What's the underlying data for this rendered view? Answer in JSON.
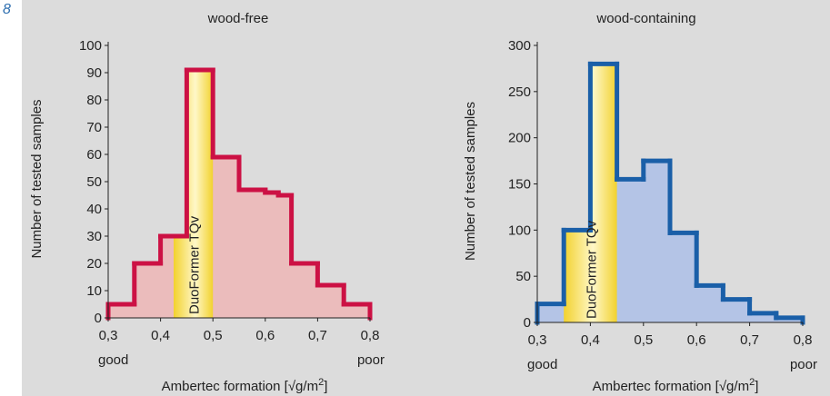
{
  "figure": {
    "number": "8"
  },
  "chart_data": [
    {
      "type": "bar",
      "title": "wood-free",
      "xlabel": "Ambertec formation [√g/m2]",
      "ylabel": "Number of tested samples",
      "x_ticks": [
        "0,3",
        "0,4",
        "0,5",
        "0,6",
        "0,7",
        "0,8"
      ],
      "y_ticks": [
        "0",
        "10",
        "20",
        "30",
        "40",
        "50",
        "60",
        "70",
        "80",
        "90",
        "100"
      ],
      "xlim": [
        0.3,
        0.8
      ],
      "ylim": [
        0,
        100
      ],
      "x_good_label": "good",
      "x_poor_label": "poor",
      "highlight_label": "DuoFormer TQv",
      "highlight_range": [
        0.425,
        0.5
      ],
      "bin_edges": [
        0.3,
        0.35,
        0.4,
        0.425,
        0.45,
        0.5,
        0.55,
        0.6,
        0.625,
        0.65,
        0.7,
        0.75,
        0.8
      ],
      "values": [
        5,
        20,
        30,
        30,
        91,
        59,
        47,
        46,
        45,
        20,
        12,
        5
      ],
      "color_line": "#cc1144",
      "color_fill": "#ebbcbc"
    },
    {
      "type": "bar",
      "title": "wood-containing",
      "xlabel": "Ambertec formation [√g/m2]",
      "ylabel": "Number of tested samples",
      "x_ticks": [
        "0,3",
        "0,4",
        "0,5",
        "0,6",
        "0,7",
        "0,8"
      ],
      "y_ticks": [
        "0",
        "50",
        "100",
        "150",
        "200",
        "250",
        "300"
      ],
      "xlim": [
        0.3,
        0.8
      ],
      "ylim": [
        0,
        300
      ],
      "x_good_label": "good",
      "x_poor_label": "poor",
      "highlight_label": "DuoFormer TQv",
      "highlight_range": [
        0.35,
        0.45
      ],
      "bin_edges": [
        0.3,
        0.35,
        0.4,
        0.45,
        0.5,
        0.55,
        0.6,
        0.65,
        0.7,
        0.75,
        0.8
      ],
      "values": [
        20,
        100,
        280,
        155,
        175,
        97,
        40,
        25,
        10,
        5
      ],
      "color_line": "#1a5fa8",
      "color_fill": "#b4c4e6"
    }
  ]
}
